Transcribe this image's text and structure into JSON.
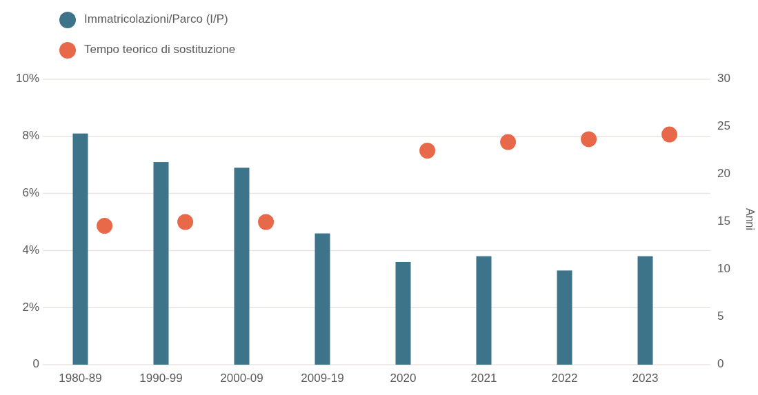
{
  "chart_data": {
    "type": "bar",
    "categories": [
      "1980-89",
      "1990-99",
      "2000-09",
      "2009-19",
      "2020",
      "2021",
      "2022",
      "2023"
    ],
    "series": [
      {
        "name": "Immatricolazioni/Parco (I/P)",
        "type": "bar",
        "color": "#3d7489",
        "values": [
          8.1,
          7.1,
          6.9,
          4.6,
          3.6,
          3.8,
          3.3,
          3.8
        ]
      },
      {
        "name": "Tempo teorico di sostituzione",
        "type": "scatter",
        "axis": "y2",
        "color": "#e8694a",
        "values": [
          14.6,
          15.0,
          15.0,
          null,
          22.5,
          23.4,
          23.7,
          24.2
        ]
      }
    ],
    "ylim": [
      0,
      10
    ],
    "yticks": [
      0,
      {
        "value": 2,
        "label": "2%"
      },
      {
        "value": 4,
        "label": "4%"
      },
      {
        "value": 6,
        "label": "6%"
      },
      {
        "value": 8,
        "label": "8%"
      },
      {
        "value": 10,
        "label": "10%"
      }
    ],
    "y2lim": [
      0,
      30
    ],
    "y2ticks": [
      0,
      5,
      10,
      15,
      20,
      25,
      30
    ],
    "y2label": "Anni",
    "grid": "y",
    "legend": "top left",
    "marker": "circle"
  }
}
